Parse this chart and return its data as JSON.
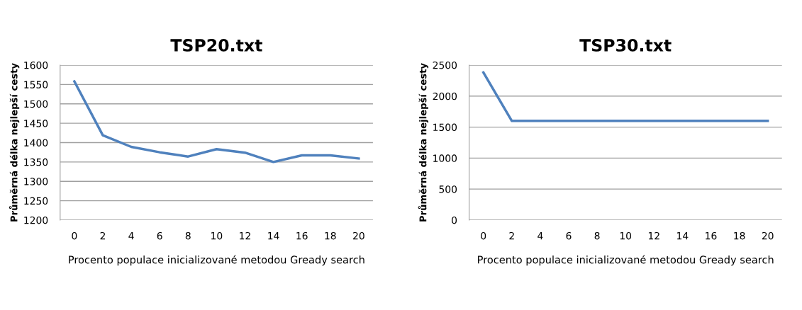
{
  "chart_data": [
    {
      "type": "line",
      "title": "TSP20.txt",
      "xlabel": "Procento populace inicializované metodou Gready search",
      "ylabel": "Průměrná délka nejlepší cesty",
      "categories": [
        "0",
        "2",
        "4",
        "6",
        "8",
        "10",
        "12",
        "14",
        "16",
        "18",
        "20"
      ],
      "series": [
        {
          "color": "#4f81bd",
          "values": [
            1558,
            1419,
            1389,
            1375,
            1364,
            1383,
            1374,
            1350,
            1367,
            1367,
            1359
          ]
        }
      ],
      "ylim": [
        1200,
        1600
      ],
      "yticks": [
        1200,
        1250,
        1300,
        1350,
        1400,
        1450,
        1500,
        1550,
        1600
      ],
      "grid": "y",
      "marker": "none",
      "line_style": "solid"
    },
    {
      "type": "line",
      "title": "TSP30.txt",
      "xlabel": "Procento populace inicializované metodou Gready search",
      "ylabel": "Průměrná délka nejlepší cesty",
      "categories": [
        "0",
        "2",
        "4",
        "6",
        "8",
        "10",
        "12",
        "14",
        "16",
        "18",
        "20"
      ],
      "series": [
        {
          "color": "#4f81bd",
          "values": [
            2380,
            1600,
            1600,
            1600,
            1600,
            1600,
            1600,
            1600,
            1600,
            1600,
            1600
          ]
        }
      ],
      "ylim": [
        0,
        2500
      ],
      "yticks": [
        0,
        500,
        1000,
        1500,
        2000,
        2500
      ],
      "grid": "y",
      "marker": "none",
      "line_style": "solid"
    }
  ]
}
